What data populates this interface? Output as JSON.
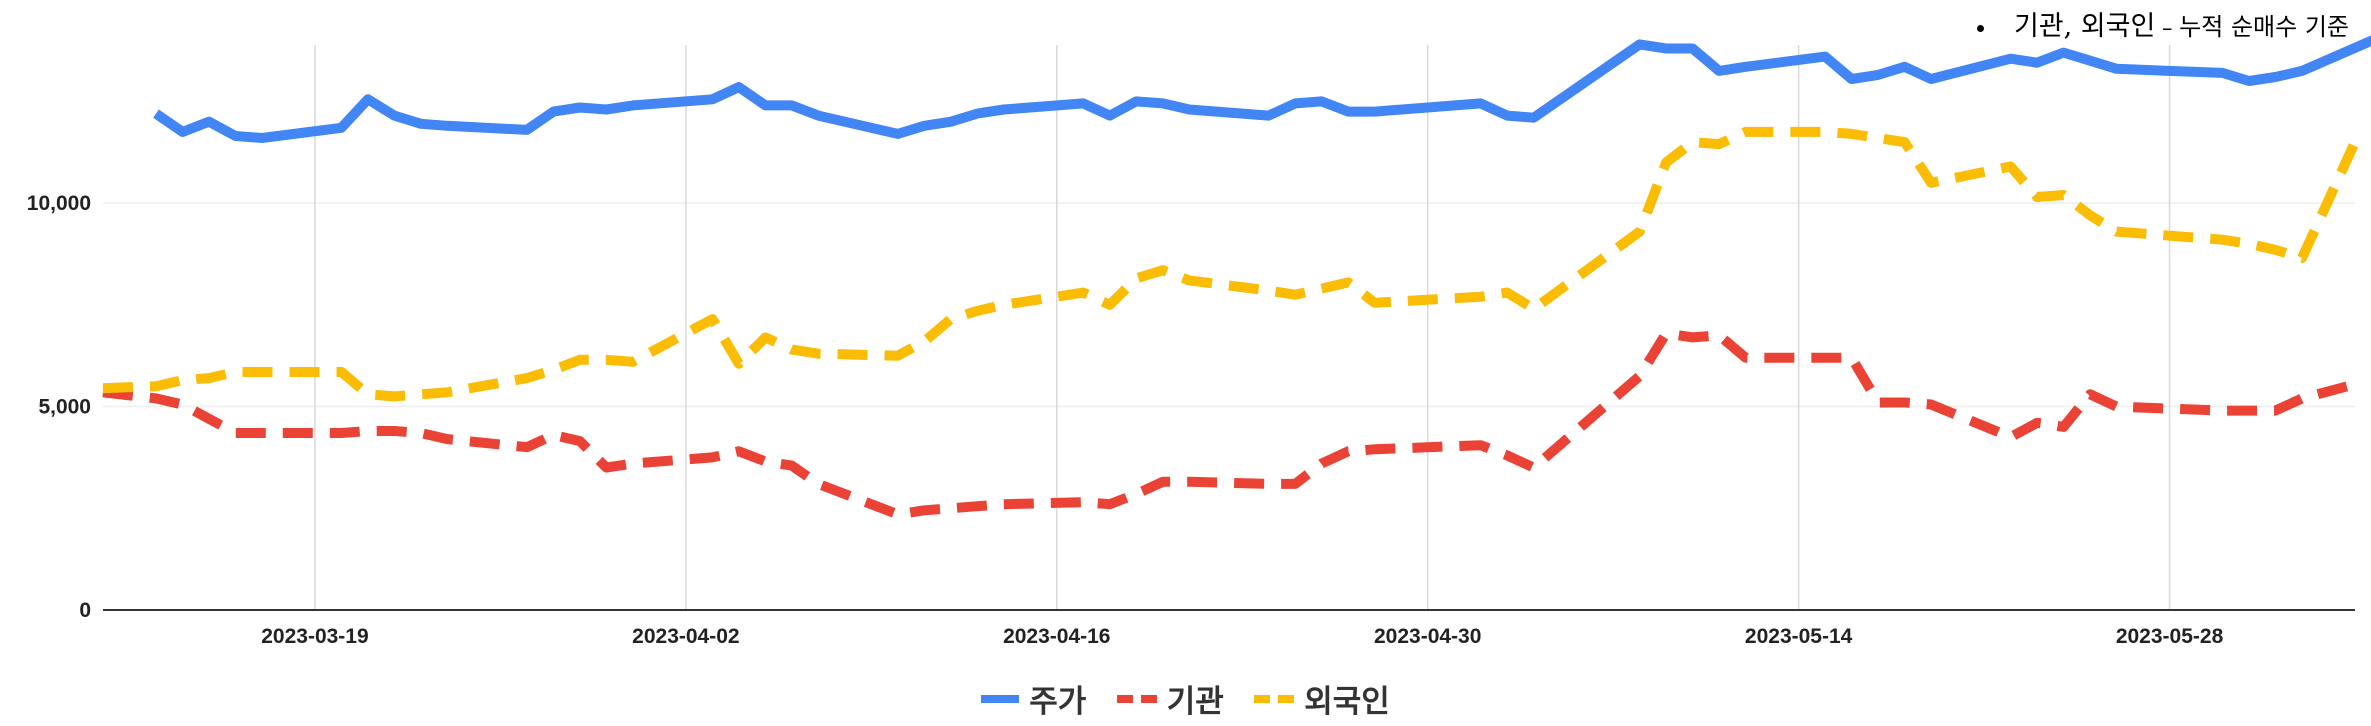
{
  "annotation": {
    "prefix": "기관, 외국인",
    "dash": " – ",
    "suffix": "누적 순매수 기준"
  },
  "colors": {
    "stock": "#4285F4",
    "institution": "#EA4335",
    "foreign": "#FBBC04",
    "grid": "#d9d9d9",
    "axis": "#333333"
  },
  "chart_data": {
    "type": "line",
    "title": "",
    "xlabel": "",
    "ylabel": "",
    "xlim": [
      "2023-03-11",
      "2023-06-04"
    ],
    "ylim": [
      0,
      14500
    ],
    "y_ticks": [
      0,
      5000,
      10000
    ],
    "y_tick_labels": [
      "0",
      "5,000",
      "10,000"
    ],
    "x_ticks": [
      "2023-03-19",
      "2023-04-02",
      "2023-04-16",
      "2023-04-30",
      "2023-05-14",
      "2023-05-28"
    ],
    "grid": true,
    "legend_position": "bottom",
    "series": [
      {
        "name": "주가",
        "key": "stock",
        "style": "solid",
        "x": [
          "2023-03-13",
          "2023-03-14",
          "2023-03-15",
          "2023-03-16",
          "2023-03-17",
          "2023-03-20",
          "2023-03-21",
          "2023-03-22",
          "2023-03-23",
          "2023-03-24",
          "2023-03-27",
          "2023-03-28",
          "2023-03-29",
          "2023-03-30",
          "2023-03-31",
          "2023-04-03",
          "2023-04-04",
          "2023-04-05",
          "2023-04-06",
          "2023-04-07",
          "2023-04-10",
          "2023-04-11",
          "2023-04-12",
          "2023-04-13",
          "2023-04-14",
          "2023-04-17",
          "2023-04-18",
          "2023-04-19",
          "2023-04-20",
          "2023-04-21",
          "2023-04-24",
          "2023-04-25",
          "2023-04-26",
          "2023-04-27",
          "2023-04-28",
          "2023-05-02",
          "2023-05-03",
          "2023-05-04",
          "2023-05-08",
          "2023-05-09",
          "2023-05-10",
          "2023-05-11",
          "2023-05-12",
          "2023-05-15",
          "2023-05-16",
          "2023-05-17",
          "2023-05-18",
          "2023-05-19",
          "2023-05-22",
          "2023-05-23",
          "2023-05-24",
          "2023-05-25",
          "2023-05-26",
          "2023-05-30",
          "2023-05-31",
          "2023-06-01",
          "2023-06-02",
          "2023-06-05"
        ],
        "values": [
          12200,
          11750,
          12000,
          11650,
          11600,
          11850,
          12550,
          12150,
          11950,
          11900,
          11800,
          12250,
          12350,
          12300,
          12400,
          12550,
          12850,
          12400,
          12400,
          12150,
          11700,
          11900,
          12000,
          12200,
          12300,
          12450,
          12150,
          12500,
          12450,
          12300,
          12150,
          12450,
          12500,
          12250,
          12250,
          12450,
          12150,
          12100,
          13900,
          13800,
          13800,
          13250,
          13350,
          13600,
          13050,
          13150,
          13350,
          13050,
          13550,
          13450,
          13700,
          13500,
          13300,
          13200,
          13000,
          13100,
          13250,
          14100
        ]
      },
      {
        "name": "기관",
        "key": "institution",
        "style": "dashed",
        "x": [
          "2023-03-11",
          "2023-03-13",
          "2023-03-14",
          "2023-03-15",
          "2023-03-16",
          "2023-03-17",
          "2023-03-20",
          "2023-03-21",
          "2023-03-22",
          "2023-03-23",
          "2023-03-24",
          "2023-03-27",
          "2023-03-28",
          "2023-03-29",
          "2023-03-30",
          "2023-03-31",
          "2023-04-03",
          "2023-04-04",
          "2023-04-05",
          "2023-04-06",
          "2023-04-07",
          "2023-04-10",
          "2023-04-11",
          "2023-04-12",
          "2023-04-13",
          "2023-04-14",
          "2023-04-17",
          "2023-04-18",
          "2023-04-19",
          "2023-04-20",
          "2023-04-21",
          "2023-04-24",
          "2023-04-25",
          "2023-04-26",
          "2023-04-27",
          "2023-04-28",
          "2023-05-02",
          "2023-05-03",
          "2023-05-04",
          "2023-05-08",
          "2023-05-09",
          "2023-05-10",
          "2023-05-11",
          "2023-05-12",
          "2023-05-15",
          "2023-05-16",
          "2023-05-17",
          "2023-05-18",
          "2023-05-19",
          "2023-05-22",
          "2023-05-23",
          "2023-05-24",
          "2023-05-25",
          "2023-05-26",
          "2023-05-30",
          "2023-05-31",
          "2023-06-01",
          "2023-06-02",
          "2023-06-04"
        ],
        "values": [
          5350,
          5200,
          5050,
          4700,
          4350,
          4350,
          4350,
          4400,
          4400,
          4350,
          4200,
          4000,
          4300,
          4150,
          3500,
          3600,
          3750,
          3900,
          3650,
          3550,
          3100,
          2350,
          2450,
          2500,
          2550,
          2600,
          2650,
          2600,
          2850,
          3150,
          3150,
          3100,
          3100,
          3600,
          3900,
          3950,
          4050,
          3800,
          3500,
          5750,
          6800,
          6700,
          6750,
          6200,
          6200,
          6200,
          5100,
          5100,
          5050,
          4250,
          4600,
          4500,
          5300,
          5000,
          4900,
          4900,
          4900,
          5200,
          5550
        ]
      },
      {
        "name": "외국인",
        "key": "foreign",
        "style": "dashed",
        "x": [
          "2023-03-11",
          "2023-03-13",
          "2023-03-14",
          "2023-03-15",
          "2023-03-16",
          "2023-03-17",
          "2023-03-20",
          "2023-03-21",
          "2023-03-22",
          "2023-03-23",
          "2023-03-24",
          "2023-03-27",
          "2023-03-28",
          "2023-03-29",
          "2023-03-30",
          "2023-03-31",
          "2023-04-03",
          "2023-04-04",
          "2023-04-05",
          "2023-04-06",
          "2023-04-07",
          "2023-04-10",
          "2023-04-11",
          "2023-04-12",
          "2023-04-13",
          "2023-04-14",
          "2023-04-17",
          "2023-04-18",
          "2023-04-19",
          "2023-04-20",
          "2023-04-21",
          "2023-04-24",
          "2023-04-25",
          "2023-04-26",
          "2023-04-27",
          "2023-04-28",
          "2023-05-02",
          "2023-05-03",
          "2023-05-04",
          "2023-05-08",
          "2023-05-09",
          "2023-05-10",
          "2023-05-11",
          "2023-05-12",
          "2023-05-15",
          "2023-05-16",
          "2023-05-17",
          "2023-05-18",
          "2023-05-19",
          "2023-05-22",
          "2023-05-23",
          "2023-05-24",
          "2023-05-25",
          "2023-05-26",
          "2023-05-30",
          "2023-05-31",
          "2023-06-01",
          "2023-06-02",
          "2023-06-04"
        ],
        "values": [
          5450,
          5500,
          5650,
          5700,
          5850,
          5850,
          5850,
          5300,
          5250,
          5300,
          5350,
          5700,
          5900,
          6150,
          6150,
          6100,
          7150,
          6050,
          6700,
          6400,
          6300,
          6250,
          6600,
          7150,
          7350,
          7500,
          7800,
          7500,
          8150,
          8350,
          8100,
          7850,
          7750,
          7900,
          8050,
          7550,
          7700,
          7800,
          7400,
          9300,
          11000,
          11500,
          11450,
          11750,
          11750,
          11700,
          11600,
          11500,
          10500,
          10900,
          10150,
          10200,
          9700,
          9300,
          9100,
          9000,
          8850,
          8650,
          11500
        ]
      }
    ]
  }
}
